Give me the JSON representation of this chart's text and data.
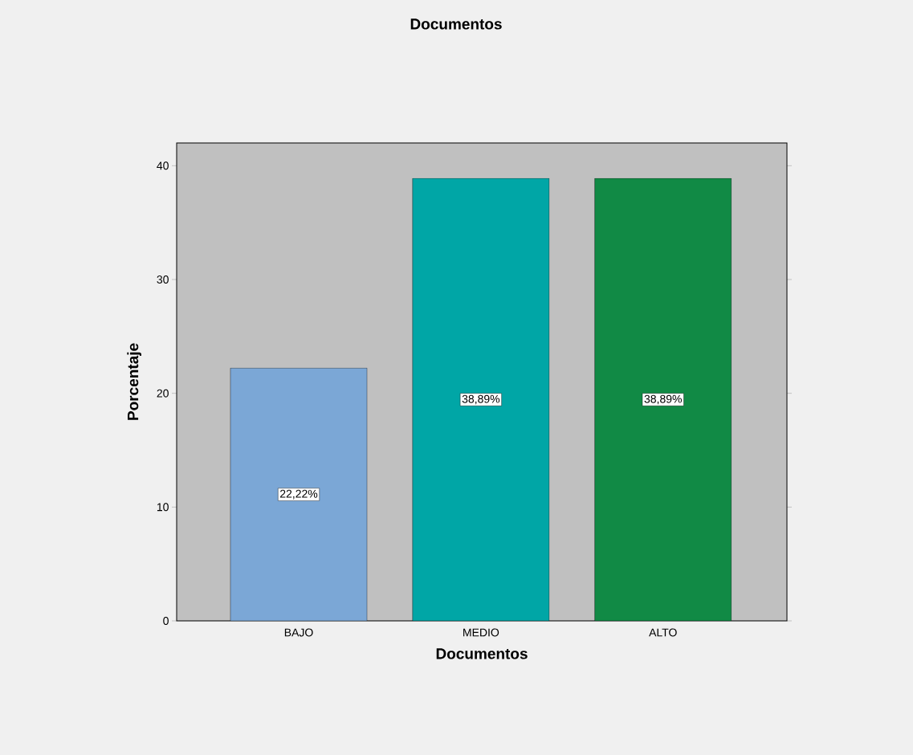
{
  "chart_data": {
    "type": "bar",
    "title": "Documentos",
    "xlabel": "Documentos",
    "ylabel": "Porcentaje",
    "categories": [
      "BAJO",
      "MEDIO",
      "ALTO"
    ],
    "values": [
      22.22,
      38.89,
      38.89
    ],
    "colors": [
      "#7ba7d6",
      "#00a6a6",
      "#118a45"
    ],
    "value_labels": [
      "22,22%",
      "38,89%",
      "38,89%"
    ],
    "ylim": [
      0,
      42
    ],
    "yticks": [
      0,
      10,
      20,
      30,
      40
    ]
  }
}
